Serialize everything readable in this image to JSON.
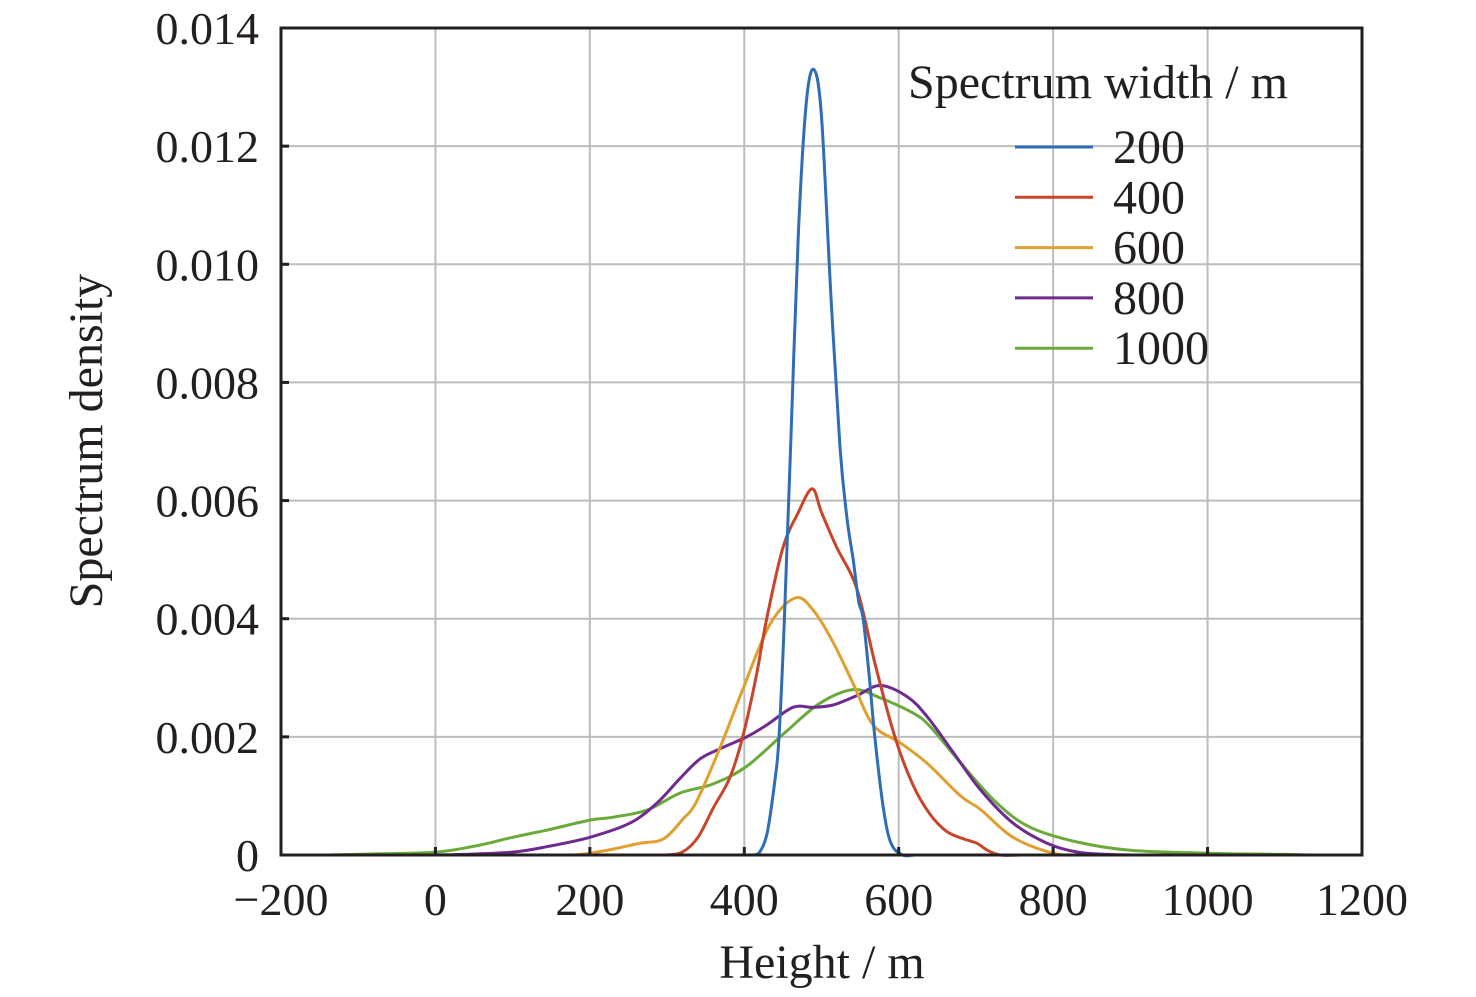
{
  "chart_data": {
    "type": "line",
    "xlabel": "Height / m",
    "ylabel": "Spectrum density",
    "xlim": [
      -200,
      1200
    ],
    "ylim": [
      0,
      0.014
    ],
    "xticks": [
      "−200",
      "0",
      "200",
      "400",
      "600",
      "800",
      "1000",
      "1200"
    ],
    "xtick_values": [
      -200,
      0,
      200,
      400,
      600,
      800,
      1000,
      1200
    ],
    "yticks": [
      "0",
      "0.002",
      "0.004",
      "0.006",
      "0.008",
      "0.010",
      "0.012",
      "0.014"
    ],
    "ytick_values": [
      0,
      0.002,
      0.004,
      0.006,
      0.008,
      0.01,
      0.012,
      0.014
    ],
    "grid": true,
    "legend": {
      "title": "Spectrum width / m",
      "placement": "top-right"
    },
    "series": [
      {
        "name": "200",
        "color": "#2f6db5",
        "points": [
          [
            410,
            0
          ],
          [
            420,
            5e-05
          ],
          [
            430,
            0.0004
          ],
          [
            440,
            0.0013
          ],
          [
            445,
            0.002
          ],
          [
            452,
            0.004
          ],
          [
            460,
            0.0069
          ],
          [
            470,
            0.0105
          ],
          [
            480,
            0.0127
          ],
          [
            490,
            0.0133
          ],
          [
            500,
            0.0125
          ],
          [
            512,
            0.0095
          ],
          [
            524,
            0.0069
          ],
          [
            533,
            0.0057
          ],
          [
            541,
            0.005
          ],
          [
            548,
            0.0043
          ],
          [
            554,
            0.004
          ],
          [
            562,
            0.003
          ],
          [
            569,
            0.002
          ],
          [
            580,
            0.0008
          ],
          [
            590,
            0.0002
          ],
          [
            605,
            0
          ],
          [
            620,
            0
          ]
        ]
      },
      {
        "name": "400",
        "color": "#c8452a",
        "points": [
          [
            300,
            0
          ],
          [
            320,
            5e-05
          ],
          [
            340,
            0.0003
          ],
          [
            360,
            0.0008
          ],
          [
            381,
            0.0013
          ],
          [
            398,
            0.002
          ],
          [
            415,
            0.003
          ],
          [
            429,
            0.004
          ],
          [
            450,
            0.0052
          ],
          [
            470,
            0.0058
          ],
          [
            488,
            0.0062
          ],
          [
            500,
            0.0058
          ],
          [
            520,
            0.0052
          ],
          [
            546,
            0.0045
          ],
          [
            570,
            0.0032
          ],
          [
            595,
            0.002
          ],
          [
            618,
            0.0012
          ],
          [
            640,
            0.0007
          ],
          [
            662,
            0.0004
          ],
          [
            685,
            0.00027
          ],
          [
            701,
            0.0002
          ],
          [
            715,
            8e-05
          ],
          [
            731,
            0
          ],
          [
            760,
            0
          ]
        ]
      },
      {
        "name": "600",
        "color": "#e0a030",
        "points": [
          [
            180,
            0
          ],
          [
            200,
            3e-05
          ],
          [
            230,
            0.0001
          ],
          [
            265,
            0.0002
          ],
          [
            295,
            0.00027
          ],
          [
            320,
            0.0006
          ],
          [
            338,
            0.0009
          ],
          [
            368,
            0.0018
          ],
          [
            398,
            0.0028
          ],
          [
            433,
            0.0039
          ],
          [
            466,
            0.00435
          ],
          [
            489,
            0.00415
          ],
          [
            515,
            0.0036
          ],
          [
            541,
            0.0029
          ],
          [
            567,
            0.0022
          ],
          [
            602,
            0.0019
          ],
          [
            637,
            0.00155
          ],
          [
            680,
            0.001
          ],
          [
            706,
            0.00077
          ],
          [
            748,
            0.0003
          ],
          [
            800,
            3e-05
          ],
          [
            830,
            0
          ]
        ]
      },
      {
        "name": "800",
        "color": "#6e2b8f",
        "points": [
          [
            0,
            0
          ],
          [
            36,
            1e-05
          ],
          [
            101,
            5e-05
          ],
          [
            144,
            0.00014
          ],
          [
            200,
            0.0003
          ],
          [
            252,
            0.00054
          ],
          [
            287,
            0.00088
          ],
          [
            317,
            0.0013
          ],
          [
            343,
            0.00163
          ],
          [
            369,
            0.0018
          ],
          [
            403,
            0.002
          ],
          [
            429,
            0.0022
          ],
          [
            463,
            0.0025
          ],
          [
            489,
            0.0025
          ],
          [
            515,
            0.00254
          ],
          [
            546,
            0.0027
          ],
          [
            576,
            0.00287
          ],
          [
            611,
            0.00268
          ],
          [
            637,
            0.00234
          ],
          [
            671,
            0.00173
          ],
          [
            706,
            0.0011
          ],
          [
            748,
            0.00054
          ],
          [
            792,
            0.0002
          ],
          [
            831,
            5e-05
          ],
          [
            870,
            1e-05
          ],
          [
            900,
            0
          ]
        ]
      },
      {
        "name": "1000",
        "color": "#6aaa3a",
        "points": [
          [
            -140,
            0
          ],
          [
            -72,
            2e-05
          ],
          [
            2,
            5e-05
          ],
          [
            58,
            0.00017
          ],
          [
            100,
            0.0003
          ],
          [
            144,
            0.00042
          ],
          [
            200,
            0.00059
          ],
          [
            230,
            0.00064
          ],
          [
            274,
            0.00076
          ],
          [
            317,
            0.00105
          ],
          [
            359,
            0.0012
          ],
          [
            403,
            0.0015
          ],
          [
            455,
            0.0021
          ],
          [
            498,
            0.00257
          ],
          [
            541,
            0.0028
          ],
          [
            576,
            0.00266
          ],
          [
            619,
            0.0024
          ],
          [
            641,
            0.00217
          ],
          [
            684,
            0.0015
          ],
          [
            727,
            0.00088
          ],
          [
            770,
            0.00047
          ],
          [
            831,
            0.00022
          ],
          [
            900,
            8e-05
          ],
          [
            1000,
            3e-05
          ],
          [
            1100,
            1e-05
          ],
          [
            1130,
            0
          ]
        ]
      }
    ]
  }
}
